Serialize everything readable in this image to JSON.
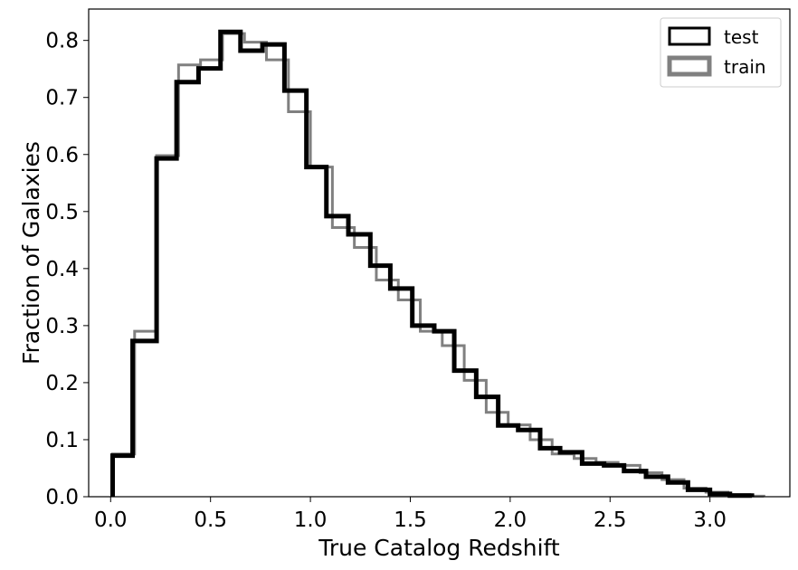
{
  "chart_data": {
    "type": "histogram",
    "xlabel": "True Catalog Redshift",
    "ylabel": "Fraction of Galaxies",
    "xlim": [
      -0.11,
      3.4
    ],
    "ylim": [
      0,
      0.855
    ],
    "xticks": [
      0.0,
      0.5,
      1.0,
      1.5,
      2.0,
      2.5,
      3.0
    ],
    "xtick_labels": [
      "0.0",
      "0.5",
      "1.0",
      "1.5",
      "2.0",
      "2.5",
      "3.0"
    ],
    "yticks": [
      0.0,
      0.1,
      0.2,
      0.3,
      0.4,
      0.5,
      0.6,
      0.7,
      0.8
    ],
    "ytick_labels": [
      "0.0",
      "0.1",
      "0.2",
      "0.3",
      "0.4",
      "0.5",
      "0.6",
      "0.7",
      "0.8"
    ],
    "grid": false,
    "legend": {
      "position": "upper-right"
    },
    "series": [
      {
        "name": "test",
        "color": "#000000",
        "edges": [
          0.01,
          0.11,
          0.23,
          0.33,
          0.44,
          0.55,
          0.65,
          0.76,
          0.87,
          0.98,
          1.08,
          1.19,
          1.3,
          1.4,
          1.51,
          1.62,
          1.72,
          1.83,
          1.94,
          2.04,
          2.15,
          2.25,
          2.36,
          2.47,
          2.57,
          2.68,
          2.79,
          2.89,
          3.0,
          3.1,
          3.21
        ],
        "values": [
          0.072,
          0.273,
          0.593,
          0.727,
          0.751,
          0.815,
          0.782,
          0.793,
          0.712,
          0.578,
          0.492,
          0.46,
          0.405,
          0.365,
          0.3,
          0.29,
          0.221,
          0.175,
          0.125,
          0.117,
          0.085,
          0.078,
          0.058,
          0.055,
          0.045,
          0.035,
          0.025,
          0.012,
          0.005,
          0.002
        ]
      },
      {
        "name": "train",
        "color": "#808080",
        "edges": [
          0.01,
          0.12,
          0.23,
          0.34,
          0.45,
          0.56,
          0.67,
          0.78,
          0.89,
          1.0,
          1.11,
          1.22,
          1.33,
          1.44,
          1.55,
          1.66,
          1.77,
          1.88,
          1.99,
          2.1,
          2.21,
          2.32,
          2.43,
          2.54,
          2.65,
          2.76,
          2.87,
          2.98,
          3.09,
          3.2,
          3.27
        ],
        "values": [
          0.075,
          0.29,
          0.598,
          0.757,
          0.766,
          0.812,
          0.797,
          0.766,
          0.675,
          0.578,
          0.472,
          0.437,
          0.38,
          0.345,
          0.29,
          0.265,
          0.204,
          0.148,
          0.126,
          0.1,
          0.075,
          0.067,
          0.06,
          0.055,
          0.042,
          0.03,
          0.015,
          0.008,
          0.004,
          0.001
        ]
      }
    ]
  }
}
